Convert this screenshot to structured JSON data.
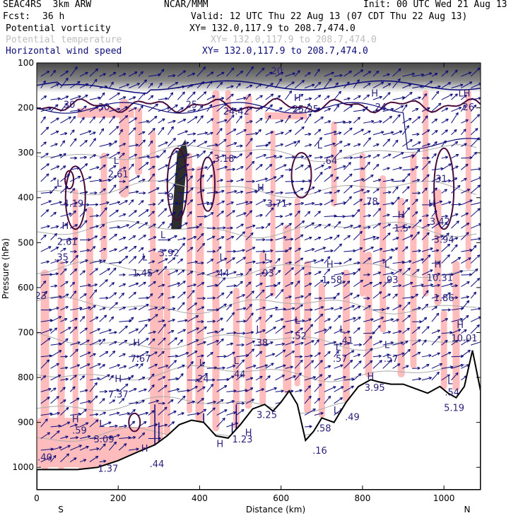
{
  "header": {
    "model": "SEAC4RS  3km ARW",
    "org": "NCAR/MMM",
    "init": "Init: 00 UTC Wed 21 Aug 13",
    "fcst_label": "Fcst:",
    "fcst_value": "36 h",
    "valid": "Valid: 12 UTC Thu 22 Aug 13 (07 CDT Thu 22 Aug 13)",
    "fields": [
      {
        "name": "Potential vorticity",
        "xy": "XY= 132.0,117.9 to 208.7,474.0",
        "color": "#000000"
      },
      {
        "name": "Potential temperature",
        "xy": "XY= 132.0,117.9 to 208.7,474.0",
        "color": "#bdbdbd"
      },
      {
        "name": "Horizontal wind speed",
        "xy": "XY= 132.0,117.9 to 208.7,474.0",
        "color": "#0b0b7a"
      }
    ]
  },
  "chart_data": {
    "type": "cross-section",
    "xlabel": "Distance (km)",
    "ylabel": "Pressure (hPa)",
    "xlim": [
      0,
      1090
    ],
    "ylim": [
      1050,
      100
    ],
    "x_ticks": [
      "0",
      "200",
      "400",
      "600",
      "800",
      "1000"
    ],
    "y_ticks": [
      "100",
      "200",
      "300",
      "400",
      "500",
      "600",
      "700",
      "800",
      "900",
      "1000"
    ],
    "end_labels": {
      "left": "S",
      "right": "N"
    },
    "colors": {
      "pv_shading": "#ffbcbc",
      "pv_contour": "#4a0a3a",
      "wind_vectors": "#0b0b7a",
      "theta_contour": "#aaaaaa",
      "wind_contour": "#0b0b7a"
    },
    "wind_speed_labels": [
      {
        "text": "30",
        "x": 80,
        "p": 200
      },
      {
        "text": "30",
        "x": 165,
        "p": 205
      },
      {
        "text": "25",
        "x": 380,
        "p": 200
      },
      {
        "text": "24.42",
        "x": 490,
        "p": 215
      },
      {
        "text": "H",
        "x": 640,
        "p": 185
      },
      {
        "text": "25.25",
        "x": 660,
        "p": 210
      },
      {
        "text": "H",
        "x": 830,
        "p": 175
      },
      {
        "text": "24",
        "x": 845,
        "p": 205
      },
      {
        "text": "LH",
        "x": 1050,
        "p": 175
      },
      {
        "text": "26",
        "x": 1060,
        "p": 205
      },
      {
        "text": "20",
        "x": 590,
        "p": 125
      },
      {
        "text": "L",
        "x": 695,
        "p": 290
      },
      {
        "text": ".64",
        "x": 720,
        "p": 325
      },
      {
        "text": "3.18",
        "x": 460,
        "p": 320
      },
      {
        "text": "L",
        "x": 195,
        "p": 325
      },
      {
        "text": "2.61",
        "x": 200,
        "p": 355
      },
      {
        "text": "L",
        "x": 55,
        "p": 375
      },
      {
        "text": "4.19",
        "x": 90,
        "p": 420
      },
      {
        "text": "9.2",
        "x": 340,
        "p": 405
      },
      {
        "text": "3.71",
        "x": 590,
        "p": 420
      },
      {
        "text": "H",
        "x": 550,
        "p": 385
      },
      {
        "text": ".78",
        "x": 820,
        "p": 415
      },
      {
        "text": ".31",
        "x": 990,
        "p": 365
      },
      {
        "text": "H",
        "x": 895,
        "p": 445
      },
      {
        "text": "1.5",
        "x": 895,
        "p": 475
      },
      {
        "text": "H",
        "x": 970,
        "p": 420
      },
      {
        "text": "3.42",
        "x": 990,
        "p": 460
      },
      {
        "text": "3.94",
        "x": 1000,
        "p": 500
      },
      {
        "text": "H",
        "x": 70,
        "p": 470
      },
      {
        "text": "2.61",
        "x": 75,
        "p": 505
      },
      {
        "text": ".35",
        "x": 60,
        "p": 540
      },
      {
        "text": "L",
        "x": 310,
        "p": 490
      },
      {
        "text": "3.92",
        "x": 325,
        "p": 530
      },
      {
        "text": "L",
        "x": 265,
        "p": 540
      },
      {
        "text": "1.45",
        "x": 260,
        "p": 575
      },
      {
        "text": "L",
        "x": 455,
        "p": 540
      },
      {
        "text": ".44",
        "x": 455,
        "p": 575
      },
      {
        "text": "L",
        "x": 565,
        "p": 540
      },
      {
        "text": ".93",
        "x": 565,
        "p": 575
      },
      {
        "text": "H",
        "x": 720,
        "p": 555
      },
      {
        "text": "1.58",
        "x": 725,
        "p": 590
      },
      {
        "text": "L",
        "x": 860,
        "p": 555
      },
      {
        "text": ".93",
        "x": 870,
        "p": 590
      },
      {
        "text": "H",
        "x": 985,
        "p": 555
      },
      {
        "text": "10.31",
        "x": 990,
        "p": 585
      },
      {
        "text": "1.86",
        "x": 1000,
        "p": 630
      },
      {
        "text": "23",
        "x": 10,
        "p": 625
      },
      {
        "text": "L",
        "x": 640,
        "p": 680
      },
      {
        "text": ".52",
        "x": 645,
        "p": 715
      },
      {
        "text": "L",
        "x": 545,
        "p": 700
      },
      {
        "text": ".38",
        "x": 550,
        "p": 730
      },
      {
        "text": "L",
        "x": 750,
        "p": 700
      },
      {
        "text": ".41",
        "x": 760,
        "p": 725
      },
      {
        "text": "H",
        "x": 1040,
        "p": 690
      },
      {
        "text": "10.01",
        "x": 1050,
        "p": 720
      },
      {
        "text": "H",
        "x": 245,
        "p": 730
      },
      {
        "text": "7.67",
        "x": 255,
        "p": 765
      },
      {
        "text": "L",
        "x": 740,
        "p": 740
      },
      {
        "text": ".57",
        "x": 745,
        "p": 765
      },
      {
        "text": "L",
        "x": 860,
        "p": 735
      },
      {
        "text": ".57",
        "x": 870,
        "p": 765
      },
      {
        "text": "L",
        "x": 405,
        "p": 775
      },
      {
        "text": ".24",
        "x": 405,
        "p": 810
      },
      {
        "text": "L",
        "x": 490,
        "p": 770
      },
      {
        "text": ".44",
        "x": 495,
        "p": 800
      },
      {
        "text": "H",
        "x": 200,
        "p": 810
      },
      {
        "text": "7.37",
        "x": 200,
        "p": 845
      },
      {
        "text": "H",
        "x": 820,
        "p": 805
      },
      {
        "text": "3.95",
        "x": 830,
        "p": 830
      },
      {
        "text": "L",
        "x": 1015,
        "p": 815
      },
      {
        "text": ".54",
        "x": 1020,
        "p": 840
      },
      {
        "text": "5.19",
        "x": 1025,
        "p": 875
      },
      {
        "text": "3.25",
        "x": 565,
        "p": 890
      },
      {
        "text": "L",
        "x": 735,
        "p": 880
      },
      {
        "text": ".49",
        "x": 775,
        "p": 895
      },
      {
        "text": "H",
        "x": 95,
        "p": 900
      },
      {
        "text": ".59",
        "x": 105,
        "p": 925
      },
      {
        "text": "L",
        "x": 160,
        "p": 910
      },
      {
        "text": "3.09",
        "x": 165,
        "p": 945
      },
      {
        "text": ".58",
        "x": 705,
        "p": 920
      },
      {
        "text": ".16",
        "x": 695,
        "p": 970
      },
      {
        "text": "H",
        "x": 520,
        "p": 930
      },
      {
        "text": "1.23",
        "x": 505,
        "p": 945
      },
      {
        "text": "H",
        "x": 265,
        "p": 965
      },
      {
        "text": ".44",
        "x": 295,
        "p": 1000
      },
      {
        "text": "H",
        "x": 450,
        "p": 955
      },
      {
        "text": ".40",
        "x": 20,
        "p": 985
      },
      {
        "text": "1.37",
        "x": 175,
        "p": 1010
      }
    ]
  }
}
